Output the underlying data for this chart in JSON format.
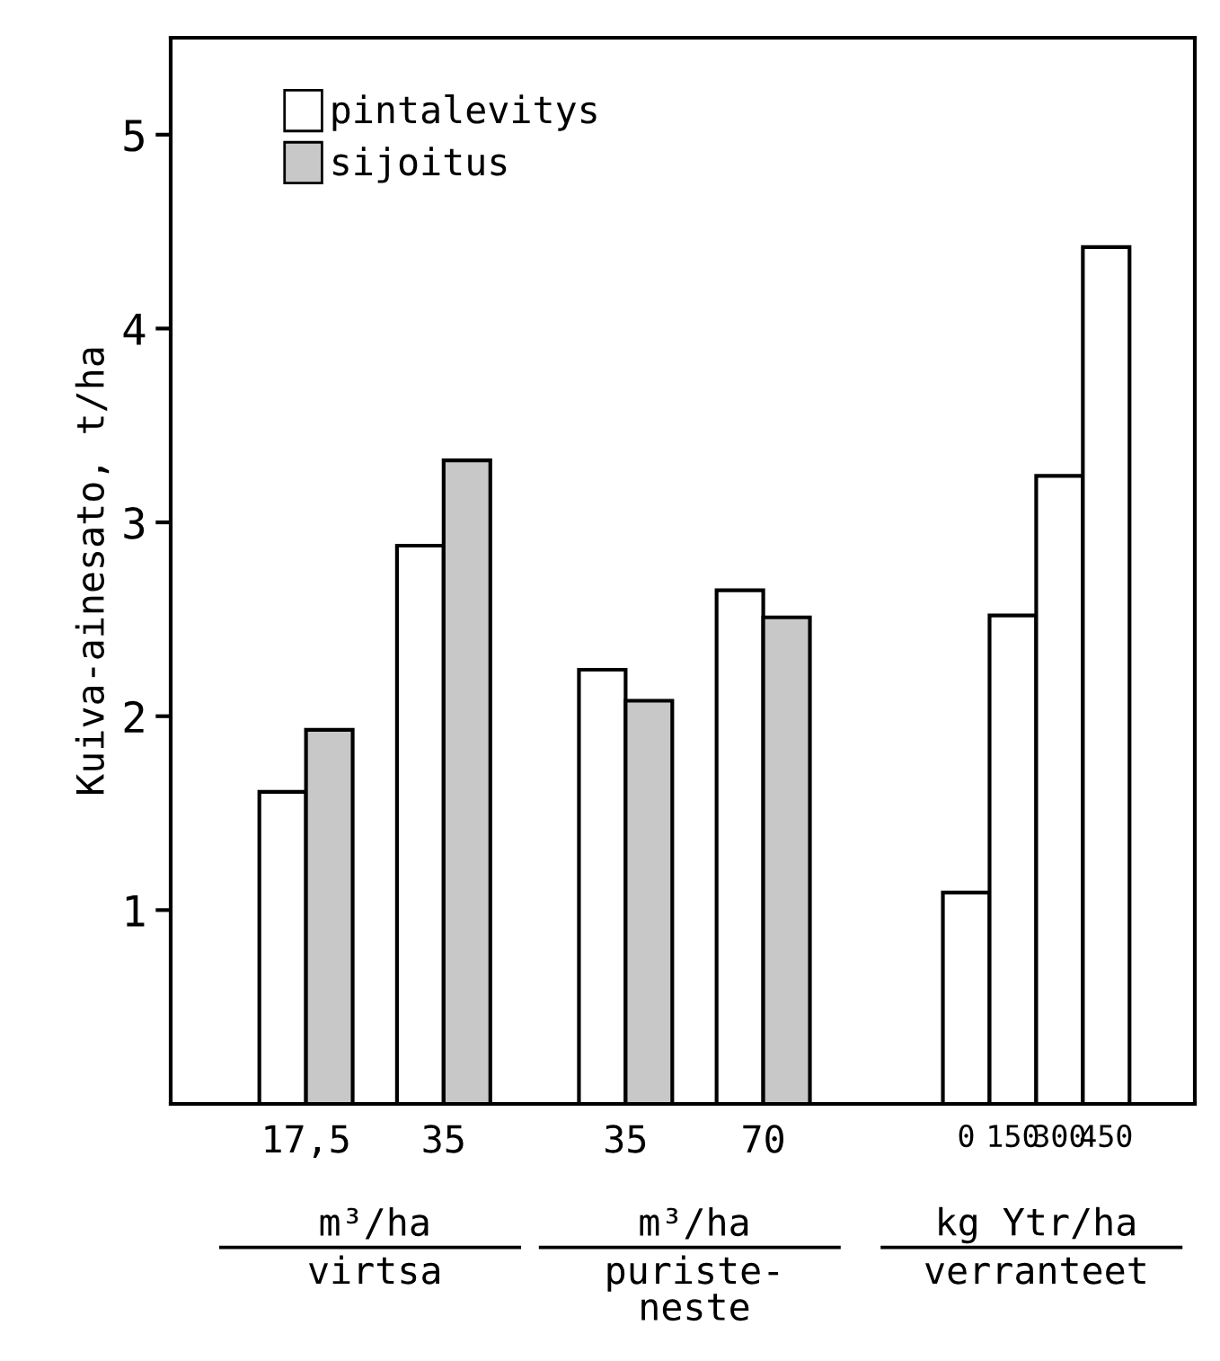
{
  "chart_data": {
    "type": "bar",
    "ylabel": "Kuiva-ainesato, t/ha",
    "categories": [
      "17,5",
      "35",
      "35",
      "70",
      "0",
      "150",
      "300",
      "450"
    ],
    "series": [
      {
        "name": "pintalevitys",
        "color": "#ffffff",
        "values": [
          1.61,
          2.88,
          2.24,
          2.65,
          1.09,
          2.52,
          3.24,
          4.42
        ]
      },
      {
        "name": "sijoitus",
        "color": "#c8c8c8",
        "values": [
          1.93,
          3.32,
          2.08,
          2.51,
          null,
          null,
          null,
          null
        ]
      }
    ],
    "ylim": [
      0,
      5.5
    ],
    "yticks": [
      1,
      2,
      3,
      4,
      5
    ],
    "grid": false,
    "legend": "top left",
    "annotations": [
      "m³/ha",
      "virtsa",
      "m³/ha",
      "puriste-\nneste",
      "kg Ytr/ha",
      "verranteet"
    ]
  }
}
